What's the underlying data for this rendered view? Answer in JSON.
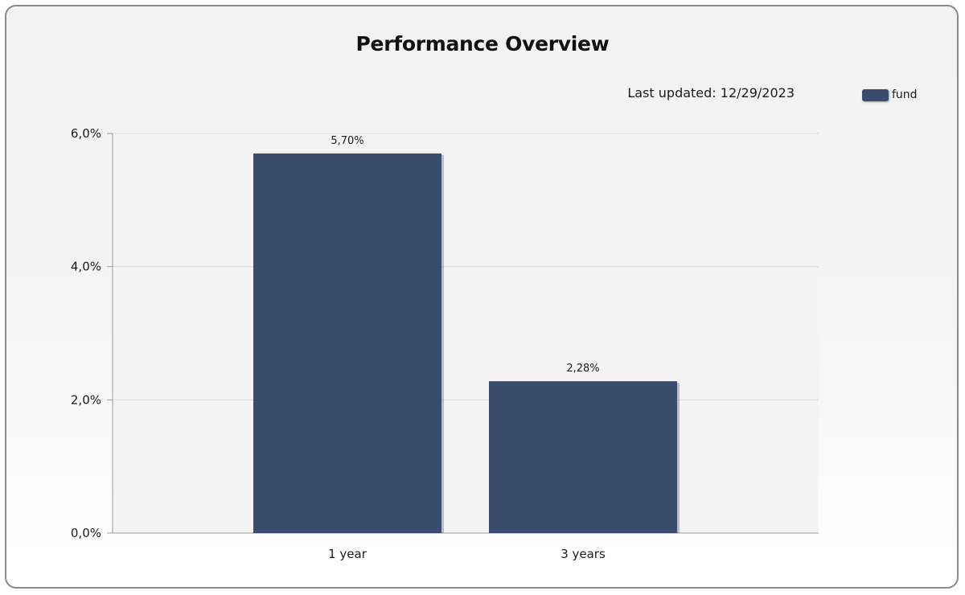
{
  "chart_data": {
    "type": "bar",
    "title": "Performance Overview",
    "subtitle": "Last updated: 12/29/2023",
    "categories": [
      "1 year",
      "3 years"
    ],
    "series": [
      {
        "name": "fund",
        "values": [
          5.7,
          2.28
        ],
        "color": "#3a4d6e"
      }
    ],
    "data_labels": [
      "5,70%",
      "2,28%"
    ],
    "y_ticks": [
      0,
      2,
      4,
      6
    ],
    "y_tick_labels": [
      "0,0%",
      "2,0%",
      "4,0%",
      "6,0%"
    ],
    "ylim": [
      0,
      6
    ],
    "xlabel": "",
    "ylabel": "",
    "grid": true,
    "legend_position": "top-right"
  }
}
